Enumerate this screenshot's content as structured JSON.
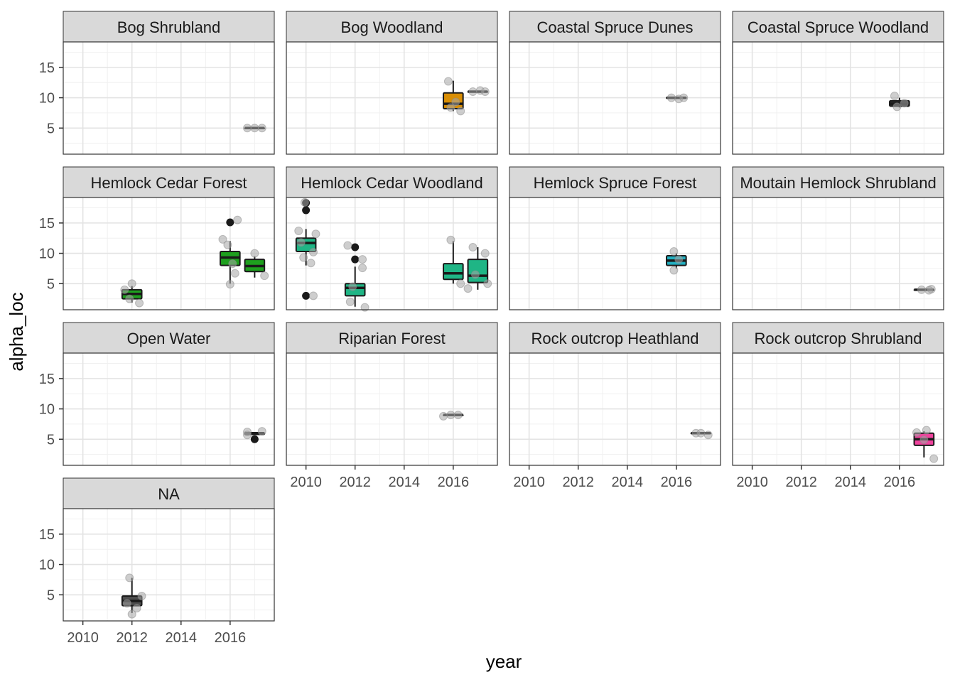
{
  "chart_data": {
    "type": "boxplot",
    "facet_layout": "wrap",
    "xlabel": "year",
    "ylabel": "alpha_loc",
    "x_ticks": [
      2010,
      2012,
      2014,
      2016
    ],
    "y_ticks": [
      5,
      10,
      15
    ],
    "xlim": [
      2009.2,
      2017.8
    ],
    "ylim": [
      0.7,
      19.2
    ],
    "grid": true,
    "theme": "bw",
    "colors": {
      "Bog Woodland": "#D98E04",
      "Coastal Spruce Woodland": "#2B2B2B",
      "Hemlock Cedar Forest": "#1E9F1E",
      "Hemlock Cedar Woodland": "#1FB585",
      "Hemlock Spruce Forest": "#22AFC0",
      "Rock  outcrop Shrubland": "#F0439E",
      "NA": "#4D4D4D",
      "jitter_points": "#a6a6a6",
      "outliers": "#1a1a1a"
    },
    "panels": [
      {
        "label": "Bog Shrubland",
        "boxes": [
          {
            "x": 2017,
            "q1": 5,
            "median": 5,
            "q3": 5,
            "lo": 5,
            "hi": 5
          }
        ],
        "points": [
          [
            2016.7,
            5
          ],
          [
            2017.0,
            5
          ],
          [
            2017.3,
            5
          ]
        ],
        "outliers": []
      },
      {
        "label": "Bog Woodland",
        "boxes": [
          {
            "x": 2016,
            "q1": 8.2,
            "median": 9,
            "q3": 10.8,
            "lo": 7.8,
            "hi": 12.8
          },
          {
            "x": 2017,
            "q1": 11,
            "median": 11,
            "q3": 11,
            "lo": 11,
            "hi": 11
          }
        ],
        "points": [
          [
            2015.8,
            12.7
          ],
          [
            2016.3,
            7.8
          ],
          [
            2015.9,
            8.4
          ],
          [
            2016.1,
            9.3
          ],
          [
            2017.1,
            11.2
          ],
          [
            2016.8,
            11
          ],
          [
            2017.3,
            11
          ]
        ],
        "outliers": []
      },
      {
        "label": "Coastal Spruce Dunes",
        "boxes": [
          {
            "x": 2016,
            "q1": 10,
            "median": 10,
            "q3": 10,
            "lo": 10,
            "hi": 10
          }
        ],
        "points": [
          [
            2016.1,
            9.8
          ],
          [
            2015.8,
            10
          ],
          [
            2016.3,
            10
          ]
        ],
        "outliers": []
      },
      {
        "label": "Coastal Spruce Woodland",
        "boxes": [
          {
            "x": 2016,
            "q1": 8.6,
            "median": 9,
            "q3": 9.5,
            "lo": 8.4,
            "hi": 10
          }
        ],
        "points": [
          [
            2015.8,
            10.3
          ],
          [
            2015.9,
            8.5
          ],
          [
            2016.2,
            9.1
          ]
        ],
        "outliers": []
      },
      {
        "label": "Hemlock Cedar Forest",
        "boxes": [
          {
            "x": 2012,
            "q1": 2.5,
            "median": 3.3,
            "q3": 4,
            "lo": 1.9,
            "hi": 4.6
          },
          {
            "x": 2016,
            "q1": 8,
            "median": 9.3,
            "q3": 10.3,
            "lo": 5,
            "hi": 12
          },
          {
            "x": 2017,
            "q1": 7,
            "median": 7.9,
            "q3": 9,
            "lo": 6,
            "hi": 9.5
          }
        ],
        "points": [
          [
            2011.7,
            4
          ],
          [
            2012.3,
            1.8
          ],
          [
            2012.0,
            5
          ],
          [
            2011.9,
            2.5
          ],
          [
            2016.0,
            4.9
          ],
          [
            2016.3,
            15.5
          ],
          [
            2015.7,
            12.3
          ],
          [
            2016.2,
            6.7
          ],
          [
            2015.9,
            11.4
          ],
          [
            2016.1,
            8.3
          ],
          [
            2017.0,
            10
          ],
          [
            2017.4,
            6.3
          ]
        ],
        "outliers": [
          [
            2016,
            15.1
          ]
        ]
      },
      {
        "label": "Hemlock Cedar Woodland",
        "boxes": [
          {
            "x": 2010,
            "q1": 10.3,
            "median": 11.7,
            "q3": 12.5,
            "lo": 8,
            "hi": 14
          },
          {
            "x": 2012,
            "q1": 3,
            "median": 4.3,
            "q3": 5,
            "lo": 1.2,
            "hi": 7.8
          },
          {
            "x": 2016,
            "q1": 5.7,
            "median": 6.7,
            "q3": 8.3,
            "lo": 5,
            "hi": 12
          },
          {
            "x": 2017,
            "q1": 5.2,
            "median": 6.3,
            "q3": 9,
            "lo": 4,
            "hi": 11
          }
        ],
        "points": [
          [
            2009.7,
            13.7
          ],
          [
            2009.9,
            9.3
          ],
          [
            2010.3,
            10.2
          ],
          [
            2010.4,
            13.2
          ],
          [
            2010.2,
            8.4
          ],
          [
            2009.8,
            11.8
          ],
          [
            2009.95,
            18.4
          ],
          [
            2010.3,
            3
          ],
          [
            2011.7,
            11.3
          ],
          [
            2011.8,
            2
          ],
          [
            2012.4,
            1.1
          ],
          [
            2012.3,
            9
          ],
          [
            2012.3,
            7.6
          ],
          [
            2011.9,
            4.5
          ],
          [
            2015.9,
            12.2
          ],
          [
            2016.3,
            5
          ],
          [
            2016.6,
            4.2
          ],
          [
            2016.8,
            11
          ],
          [
            2017.3,
            10
          ],
          [
            2017.4,
            5
          ],
          [
            2016.9,
            6.5
          ]
        ],
        "outliers": [
          [
            2010,
            18.3
          ],
          [
            2010,
            17.1
          ],
          [
            2010,
            3
          ],
          [
            2012,
            11
          ],
          [
            2012,
            9
          ]
        ]
      },
      {
        "label": "Hemlock Spruce Forest",
        "boxes": [
          {
            "x": 2016,
            "q1": 8,
            "median": 8.8,
            "q3": 9.6,
            "lo": 7.5,
            "hi": 10
          }
        ],
        "points": [
          [
            2015.9,
            10.3
          ],
          [
            2015.9,
            7.2
          ],
          [
            2016.1,
            9
          ]
        ],
        "outliers": []
      },
      {
        "label": "Moutain Hemlock Shrubland",
        "boxes": [
          {
            "x": 2017,
            "q1": 4,
            "median": 4,
            "q3": 4,
            "lo": 4,
            "hi": 4
          }
        ],
        "points": [
          [
            2017.3,
            4.1
          ],
          [
            2016.9,
            4
          ],
          [
            2017.2,
            3.9
          ]
        ],
        "outliers": []
      },
      {
        "label": "Open  Water",
        "boxes": [
          {
            "x": 2017,
            "q1": 5.8,
            "median": 6,
            "q3": 6,
            "lo": 5.8,
            "hi": 6
          }
        ],
        "points": [
          [
            2016.7,
            6.2
          ],
          [
            2016.7,
            5.7
          ],
          [
            2017.3,
            6.3
          ]
        ],
        "outliers": [
          [
            2017,
            5
          ]
        ]
      },
      {
        "label": "Riparian Forest",
        "boxes": [
          {
            "x": 2016,
            "q1": 9,
            "median": 9,
            "q3": 9,
            "lo": 9,
            "hi": 9
          }
        ],
        "points": [
          [
            2015.6,
            8.8
          ],
          [
            2016.2,
            9
          ],
          [
            2015.9,
            9
          ]
        ],
        "outliers": []
      },
      {
        "label": "Rock  outcrop Heathland",
        "boxes": [
          {
            "x": 2017,
            "q1": 6,
            "median": 6,
            "q3": 6,
            "lo": 6,
            "hi": 6
          }
        ],
        "points": [
          [
            2017.3,
            5.7
          ],
          [
            2016.8,
            6
          ],
          [
            2017.0,
            6
          ]
        ],
        "outliers": []
      },
      {
        "label": "Rock  outcrop Shrubland",
        "boxes": [
          {
            "x": 2017,
            "q1": 4,
            "median": 5,
            "q3": 6,
            "lo": 2,
            "hi": 6.3
          }
        ],
        "points": [
          [
            2016.7,
            6.1
          ],
          [
            2017.4,
            1.8
          ],
          [
            2017.1,
            6.5
          ],
          [
            2017.0,
            4.9
          ]
        ],
        "outliers": []
      },
      {
        "label": "NA",
        "boxes": [
          {
            "x": 2012,
            "q1": 3.2,
            "median": 4,
            "q3": 4.8,
            "lo": 2,
            "hi": 7.8
          }
        ],
        "points": [
          [
            2011.9,
            7.8
          ],
          [
            2012.0,
            1.8
          ],
          [
            2012.4,
            4.8
          ],
          [
            2012.2,
            2.8
          ],
          [
            2011.8,
            3.6
          ]
        ],
        "outliers": []
      }
    ]
  }
}
